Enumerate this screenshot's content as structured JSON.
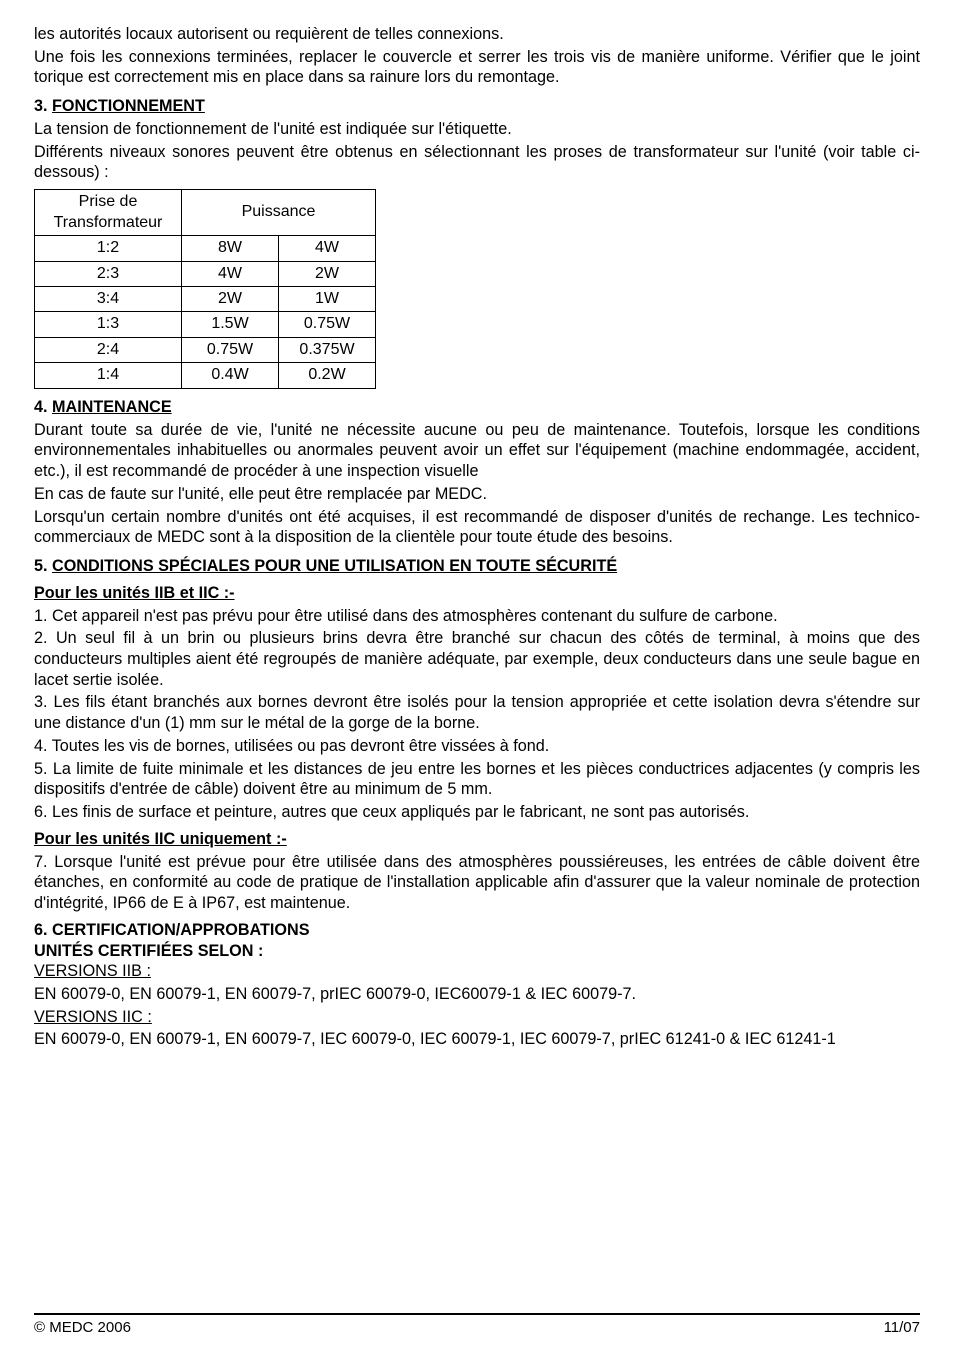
{
  "intro": {
    "p1": "les autorités locaux autorisent ou requièrent de telles connexions.",
    "p2": "Une fois les connexions terminées, replacer le couvercle et serrer les trois vis de manière uniforme. Vérifier que le joint torique est correctement mis en place dans sa rainure lors du remontage."
  },
  "s3": {
    "num": "3.",
    "title": "FONCTIONNEMENT",
    "p1": "La tension de fonctionnement de l'unité est indiquée sur l'étiquette.",
    "p2": "Différents niveaux sonores peuvent être obtenus en sélectionnant les proses de transformateur sur l'unité (voir table ci-dessous) :"
  },
  "table": {
    "header_col1_l1": "Prise de",
    "header_col1_l2": "Transformateur",
    "header_col2": "Puissance",
    "rows": [
      {
        "c1": "1:2",
        "c2": "8W",
        "c3": "4W"
      },
      {
        "c1": "2:3",
        "c2": "4W",
        "c3": "2W"
      },
      {
        "c1": "3:4",
        "c2": "2W",
        "c3": "1W"
      },
      {
        "c1": "1:3",
        "c2": "1.5W",
        "c3": "0.75W"
      },
      {
        "c1": "2:4",
        "c2": "0.75W",
        "c3": "0.375W"
      },
      {
        "c1": "1:4",
        "c2": "0.4W",
        "c3": "0.2W"
      }
    ],
    "col_widths": [
      "130px",
      "80px",
      "80px"
    ]
  },
  "s4": {
    "num": "4.",
    "title": "MAINTENANCE",
    "p1": "Durant toute sa durée de vie, l'unité ne nécessite aucune ou peu de maintenance. Toutefois, lorsque les conditions environnementales inhabituelles ou anormales peuvent avoir un effet sur l'équipement (machine endommagée, accident, etc.), il est recommandé de procéder à une inspection visuelle",
    "p2": "En cas de faute sur l'unité, elle peut être remplacée par MEDC.",
    "p3": "Lorsqu'un certain nombre d'unités ont été acquises, il est recommandé de disposer d'unités de rechange. Les technico-commerciaux de MEDC sont à la disposition de la clientèle pour toute étude des besoins."
  },
  "s5": {
    "num": "5.",
    "title": "CONDITIONS SPÉCIALES POUR UNE UTILISATION EN TOUTE SÉCURITÉ",
    "sub1": "Pour les unités IIB et IIC :-",
    "i1": "1. Cet appareil n'est pas prévu pour être utilisé dans des atmosphères contenant du sulfure de carbone.",
    "i2": "2. Un seul fil à un brin ou plusieurs brins devra être branché sur chacun des côtés de terminal, à moins que des conducteurs multiples aient été regroupés de manière adéquate, par exemple, deux conducteurs dans une seule bague en lacet sertie isolée.",
    "i3": "3. Les fils étant branchés aux bornes devront être isolés pour la tension appropriée et cette isolation devra s'étendre sur une distance d'un (1) mm sur le métal de la gorge de la borne.",
    "i4": "4. Toutes les vis de bornes, utilisées ou pas devront être vissées à fond.",
    "i5": "5. La limite de fuite minimale et les distances de jeu entre les bornes et les pièces conductrices adjacentes (y compris les dispositifs d'entrée de câble) doivent être au minimum de 5 mm.",
    "i6": "6. Les finis de surface et peinture, autres que ceux appliqués par le fabricant, ne sont pas autorisés.",
    "sub2": "Pour les unités IIC uniquement :-",
    "i7": "7. Lorsque l'unité est prévue pour être utilisée dans des atmosphères poussiéreuses, les entrées de câble doivent être étanches, en conformité au code de pratique de l'installation applicable afin d'assurer que la valeur nominale de protection d'intégrité, IP66 de E à IP67, est maintenue."
  },
  "s6": {
    "title1": "6. CERTIFICATION/APPROBATIONS",
    "title2": "UNITÉS CERTIFIÉES SELON :",
    "v1": "VERSIONS IIB :",
    "v1txt": "EN 60079-0, EN 60079-1, EN 60079-7, prIEC 60079-0, IEC60079-1 & IEC 60079-7.",
    "v2": "VERSIONS IIC :",
    "v2txt": "EN 60079-0, EN 60079-1, EN 60079-7, IEC 60079-0, IEC 60079-1, IEC 60079-7, prIEC 61241-0 & IEC 61241-1"
  },
  "footer": {
    "left": "© MEDC 2006",
    "right": "11/07"
  }
}
